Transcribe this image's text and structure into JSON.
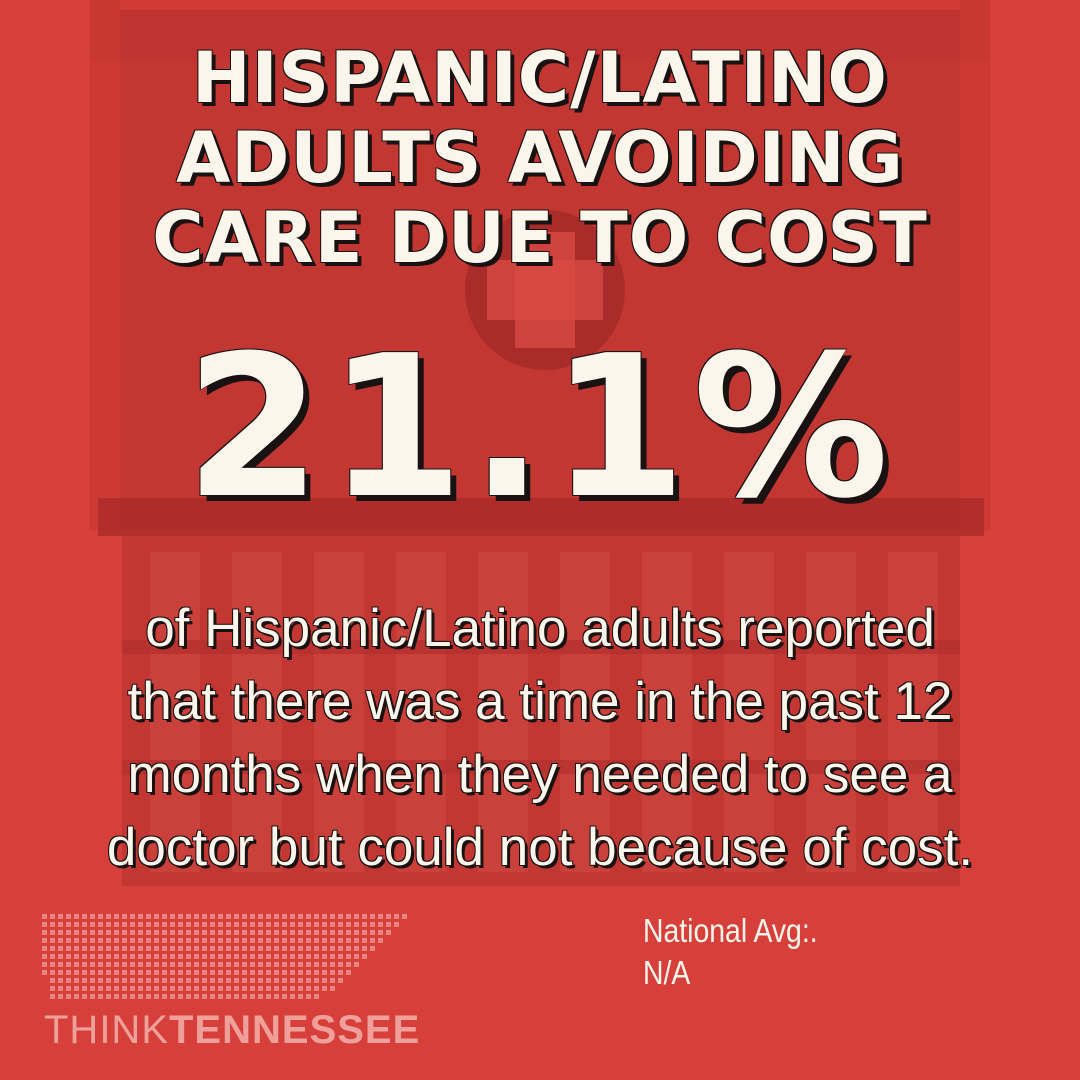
{
  "headline": {
    "lines": [
      "HISPANIC/LATINO",
      "ADULTS AVOIDING",
      "CARE DUE TO COST"
    ]
  },
  "statistic": {
    "value": "21.1%"
  },
  "description": {
    "lines": [
      "of Hispanic/Latino adults reported",
      "that there was a time in the past 12",
      "months when they needed to see a",
      "doctor but could not because of cost."
    ]
  },
  "national_average": {
    "label": "National Avg:.",
    "value": "N/A"
  },
  "logo": {
    "word_think": "THINK",
    "word_tennessee": "TENNESSEE",
    "icon": "tennessee-dot-map-icon"
  },
  "background": {
    "icon": "hospital-building-icon"
  },
  "colors": {
    "background": "#d7403a",
    "background_shape": "#b52f2d",
    "text": "#fbf6ec",
    "text_shadow": "#1a1212"
  }
}
